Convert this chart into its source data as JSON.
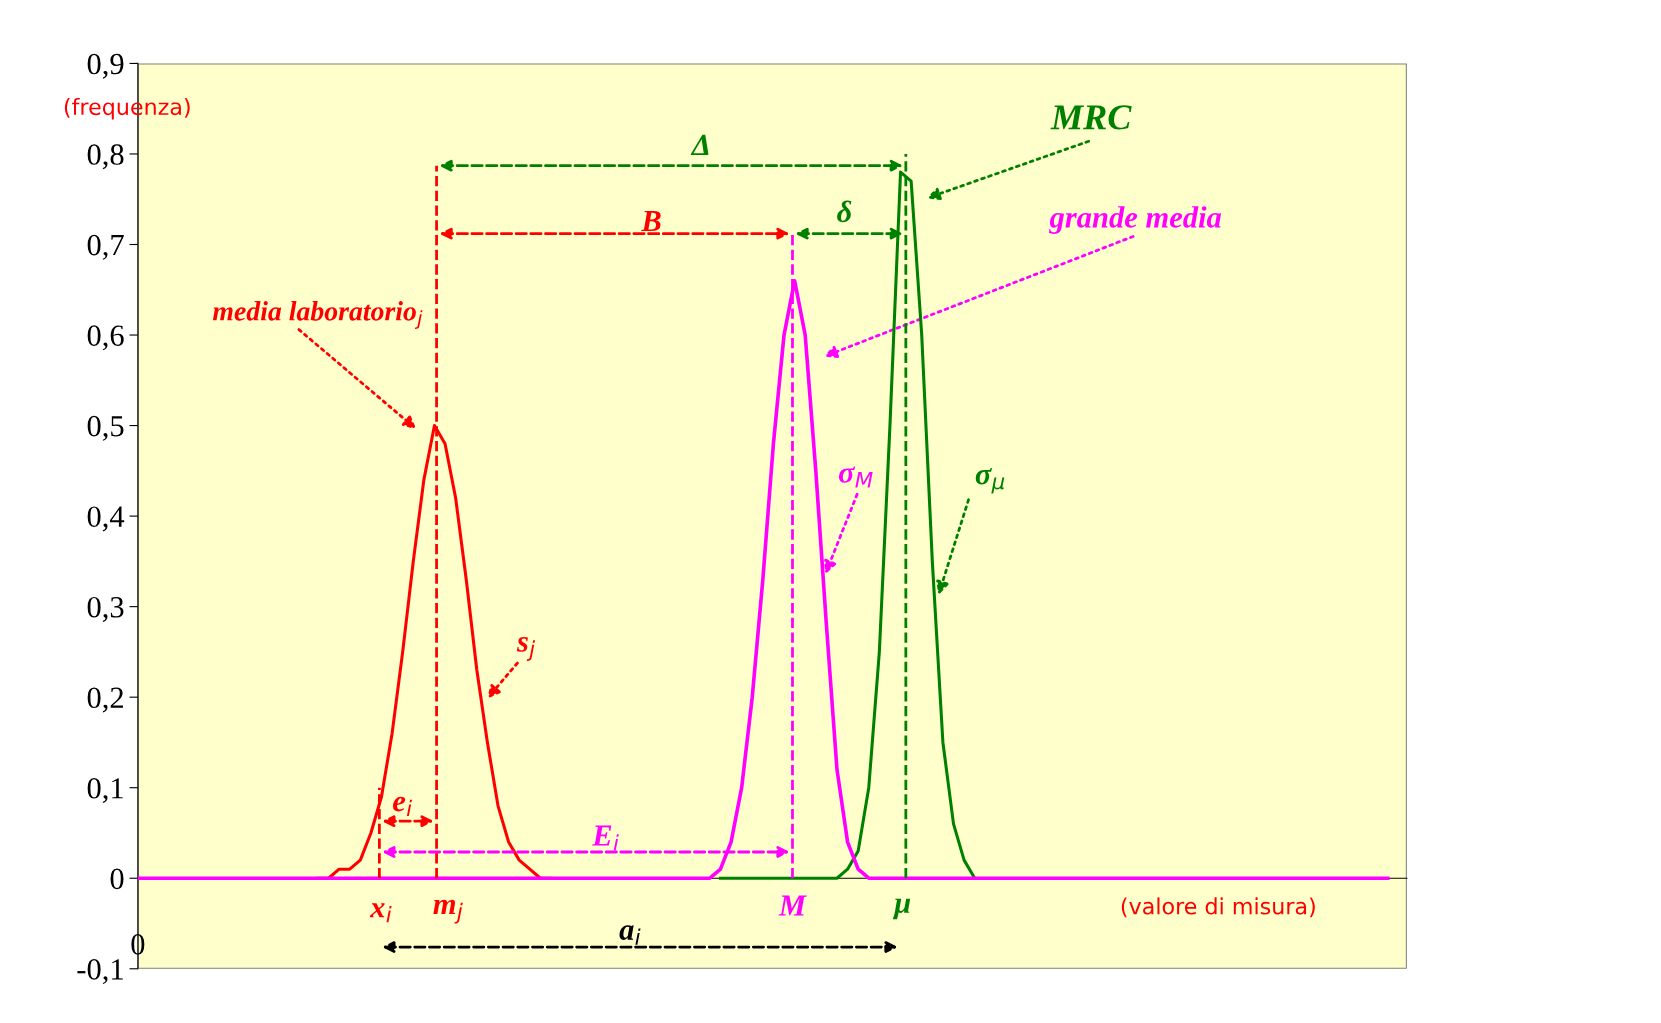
{
  "chart_data": {
    "type": "line",
    "categories": [
      null,
      null,
      null,
      null,
      null,
      null,
      null,
      null,
      null,
      null,
      null,
      null,
      null,
      null,
      null,
      null,
      null,
      null,
      null,
      null,
      null,
      null,
      null,
      null,
      null,
      null,
      null,
      null,
      null,
      null,
      null,
      null,
      null,
      null,
      null,
      null,
      null,
      null,
      null,
      null,
      null,
      null,
      null,
      null,
      null,
      null,
      null,
      null,
      null,
      null,
      null,
      null,
      null,
      null,
      null,
      null,
      null,
      null,
      null,
      null,
      null,
      null,
      null,
      null,
      null,
      null,
      null,
      null,
      null,
      null,
      null,
      null,
      null,
      null,
      null,
      null,
      null,
      null,
      null,
      null,
      null,
      null,
      null,
      null,
      null,
      null,
      null,
      null,
      null,
      null,
      null,
      null,
      null,
      null,
      null,
      null,
      null,
      null,
      null,
      null,
      null,
      null,
      null,
      null,
      null,
      null,
      null,
      null,
      null,
      null,
      null,
      null,
      null,
      null,
      null,
      null,
      null,
      null,
      null
    ],
    "series": [
      {
        "color": "#ff0000",
        "values": [
          null,
          null,
          null,
          null,
          null,
          null,
          null,
          null,
          null,
          null,
          null,
          null,
          null,
          null,
          null,
          null,
          null,
          0,
          0,
          0.01,
          0.01,
          0.02,
          0.05,
          0.09,
          0.16,
          0.25,
          0.35,
          0.44,
          0.5,
          0.48,
          0.42,
          0.33,
          0.23,
          0.15,
          0.08,
          0.04,
          0.02,
          0.01,
          0,
          0,
          null,
          null,
          null,
          null,
          null,
          null,
          null,
          null,
          null,
          null,
          null,
          null,
          null,
          null,
          null,
          null,
          null,
          null,
          null,
          null,
          null,
          null,
          null,
          null,
          null,
          null,
          null,
          null,
          null,
          null,
          null,
          null,
          null,
          null,
          null,
          null,
          null,
          null,
          null,
          null,
          null,
          null,
          null,
          null,
          null,
          null,
          null,
          null,
          null,
          null,
          null,
          null,
          null,
          null,
          null,
          null,
          null,
          null,
          null,
          null,
          null,
          null,
          null,
          null,
          null,
          null,
          null,
          null,
          null,
          null,
          null,
          null,
          null,
          null,
          null,
          null,
          null,
          null,
          null
        ]
      },
      {
        "color": "#008000",
        "values": [
          null,
          null,
          null,
          null,
          null,
          null,
          null,
          null,
          null,
          null,
          null,
          null,
          null,
          null,
          null,
          null,
          null,
          null,
          null,
          null,
          null,
          null,
          null,
          null,
          null,
          null,
          null,
          null,
          null,
          null,
          null,
          null,
          null,
          null,
          null,
          null,
          null,
          null,
          null,
          null,
          null,
          null,
          null,
          null,
          null,
          null,
          null,
          null,
          null,
          null,
          null,
          null,
          null,
          null,
          null,
          0,
          0,
          0,
          0,
          0,
          0,
          0,
          0,
          0,
          0,
          0,
          0,
          0.01,
          0.03,
          0.1,
          0.25,
          0.5,
          0.78,
          0.77,
          0.6,
          0.35,
          0.15,
          0.06,
          0.02,
          0,
          null,
          null,
          null,
          null,
          null,
          null,
          null,
          null,
          null,
          null,
          null,
          null,
          null,
          null,
          null,
          null,
          null,
          null,
          null,
          null,
          null,
          null,
          null,
          null,
          null,
          null,
          null,
          null,
          null,
          null,
          null,
          null,
          null,
          null,
          null,
          null,
          null,
          null,
          null
        ]
      },
      {
        "color": "#ff00ff",
        "values": [
          0,
          0,
          0,
          0,
          0,
          0,
          0,
          0,
          0,
          0,
          0,
          0,
          0,
          0,
          0,
          0,
          0,
          0,
          0,
          0,
          0,
          0,
          0,
          0,
          0,
          0,
          0,
          0,
          0,
          0,
          0,
          0,
          0,
          0,
          0,
          0,
          0,
          0,
          0,
          0,
          0,
          0,
          0,
          0,
          0,
          0,
          0,
          0,
          0,
          0,
          0,
          0,
          0,
          0,
          0,
          0.01,
          0.04,
          0.1,
          0.2,
          0.33,
          0.48,
          0.6,
          0.66,
          0.6,
          0.45,
          0.28,
          0.12,
          0.04,
          0.01,
          0,
          0,
          0,
          0,
          0,
          0,
          0,
          0,
          0,
          0,
          0,
          0,
          0,
          0,
          0,
          0,
          0,
          0,
          0,
          0,
          0,
          0,
          0,
          0,
          0,
          0,
          0,
          0,
          0,
          0,
          0,
          0,
          0,
          0,
          0,
          0,
          0,
          0,
          0,
          0,
          0,
          0,
          0,
          0,
          0,
          0,
          0,
          0,
          0,
          0
        ]
      }
    ],
    "ylim": [
      -0.1,
      0.9
    ],
    "yticks": [
      {
        "value": -0.1,
        "label": "-0,1"
      },
      0,
      {
        "value": 0.1,
        "label": "0,1"
      },
      {
        "value": 0.2,
        "label": "0,2"
      },
      {
        "value": 0.3,
        "label": "0,3"
      },
      {
        "value": 0.4,
        "label": "0,4"
      },
      {
        "value": 0.5,
        "label": "0,5"
      },
      {
        "value": 0.6,
        "label": "0,6"
      },
      {
        "value": 0.7,
        "label": "0,7"
      },
      {
        "value": 0.8,
        "label": "0,8"
      },
      {
        "value": 0.9,
        "label": "0,9"
      }
    ],
    "tick_labels": "y",
    "marker": "none",
    "line_style": "solid",
    "annotations": [
      "(frequenza)",
      "MRC",
      "grande media",
      "media laboratorio$_{j}$",
      "Δ",
      "B",
      "δ",
      "σ$_{M}$",
      "σ$_{μ}$",
      "s$_{j}$",
      "e$_{i}$",
      "E$_{i}$",
      "a$_{i}$",
      "x$_{i}$",
      "m$_{j}$",
      "M",
      "μ",
      "(valore di misura)",
      "0"
    ]
  }
}
